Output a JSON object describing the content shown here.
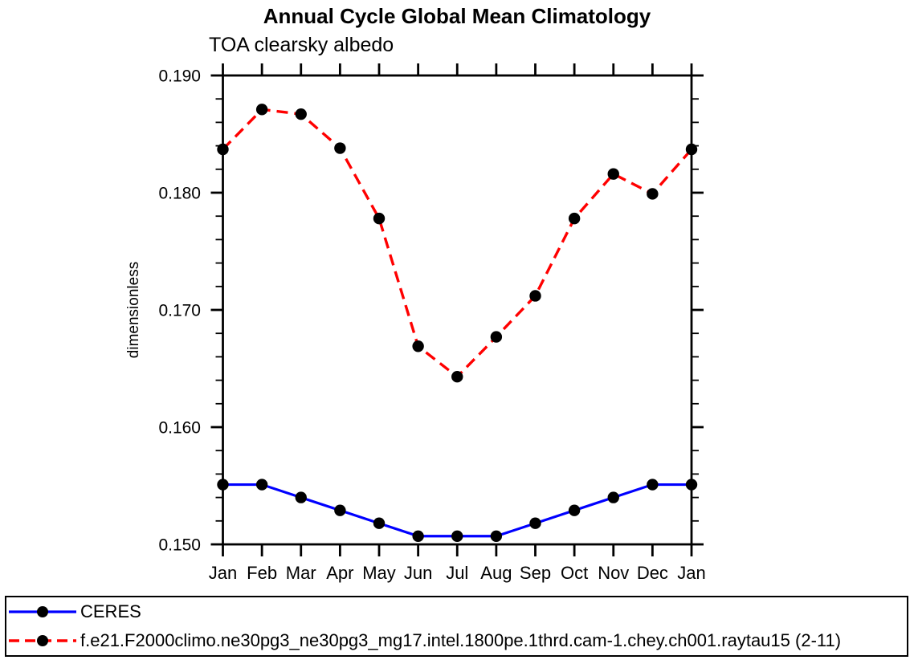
{
  "chart_data": {
    "type": "line",
    "title": "Annual Cycle Global Mean Climatology",
    "subtitle": "TOA clearsky albedo",
    "xlabel": "",
    "ylabel": "dimensionless",
    "categories": [
      "Jan",
      "Feb",
      "Mar",
      "Apr",
      "May",
      "Jun",
      "Jul",
      "Aug",
      "Sep",
      "Oct",
      "Nov",
      "Dec",
      "Jan"
    ],
    "ylim": [
      0.15,
      0.19
    ],
    "ytick_step": 0.01,
    "yminor_step": 0.002,
    "ytick_labels": [
      "0.150",
      "0.160",
      "0.170",
      "0.180",
      "0.190"
    ],
    "grid": false,
    "legend_position": "bottom-box",
    "marker": "filled-circle",
    "marker_color": "#000000",
    "axis_color": "#000000",
    "series": [
      {
        "name": "CERES",
        "color": "#0000ff",
        "line_style": "solid",
        "values": [
          0.1551,
          0.1551,
          0.154,
          0.1529,
          0.1518,
          0.1507,
          0.1507,
          0.1507,
          0.1518,
          0.1529,
          0.154,
          0.1551,
          0.1551
        ]
      },
      {
        "name": "f.e21.F2000climo.ne30pg3_ne30pg3_mg17.intel.1800pe.1thrd.cam-1.chey.ch001.raytau15 (2-11)",
        "color": "#ff0000",
        "line_style": "dashed",
        "values": [
          0.1837,
          0.1871,
          0.1867,
          0.1838,
          0.1778,
          0.1669,
          0.1643,
          0.1677,
          0.1712,
          0.1778,
          0.1816,
          0.1799,
          0.1837
        ]
      }
    ]
  }
}
